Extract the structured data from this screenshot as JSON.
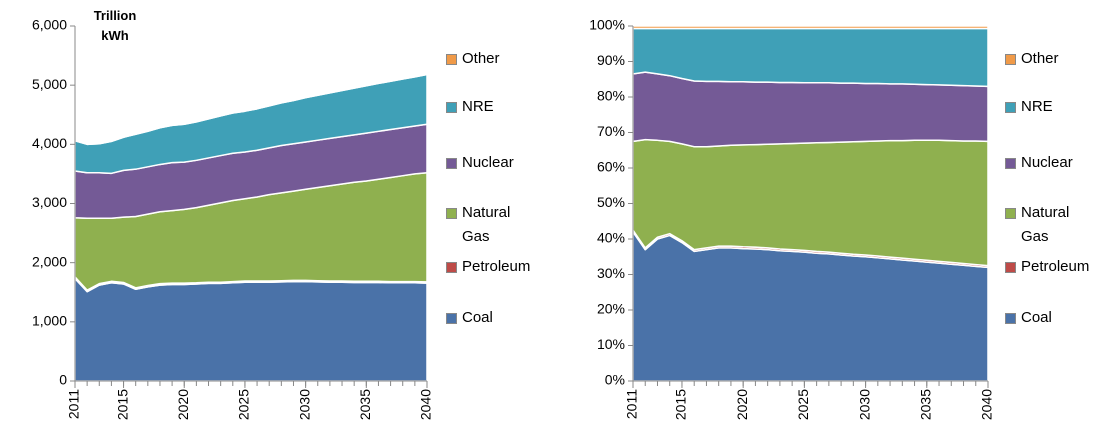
{
  "chart_data": [
    {
      "type": "area",
      "y_label": "Trillion kWh",
      "x": [
        2011,
        2012,
        2013,
        2014,
        2015,
        2016,
        2017,
        2018,
        2019,
        2020,
        2021,
        2022,
        2023,
        2024,
        2025,
        2026,
        2027,
        2028,
        2029,
        2030,
        2031,
        2032,
        2033,
        2034,
        2035,
        2036,
        2037,
        2038,
        2039,
        2040
      ],
      "xlim": [
        2011,
        2040
      ],
      "xticks": [
        2011,
        2015,
        2020,
        2025,
        2030,
        2035,
        2040
      ],
      "ylim": [
        0,
        6000
      ],
      "yticks": [
        0,
        {
          "value": 1000,
          "label": "1,000"
        },
        {
          "value": 2000,
          "label": "2,000"
        },
        {
          "value": 3000,
          "label": "3,000"
        },
        {
          "value": 4000,
          "label": "4,000"
        },
        {
          "value": 5000,
          "label": "5,000"
        },
        {
          "value": 6000,
          "label": "6,000"
        }
      ],
      "series": [
        {
          "name": "Coal",
          "color": "#4a72a8",
          "values": [
            1730,
            1510,
            1620,
            1660,
            1640,
            1550,
            1590,
            1620,
            1630,
            1630,
            1640,
            1650,
            1650,
            1660,
            1670,
            1670,
            1670,
            1675,
            1680,
            1680,
            1675,
            1670,
            1670,
            1665,
            1665,
            1665,
            1660,
            1660,
            1660,
            1655
          ]
        },
        {
          "name": "Petroleum",
          "color": "#be4b48",
          "values": [
            30,
            25,
            25,
            25,
            25,
            25,
            25,
            25,
            25,
            25,
            20,
            20,
            20,
            20,
            20,
            20,
            20,
            20,
            20,
            20,
            20,
            20,
            20,
            20,
            20,
            20,
            20,
            20,
            20,
            20
          ]
        },
        {
          "name": "Natural Gas",
          "color": "#8fb04f",
          "values": [
            1000,
            1215,
            1105,
            1065,
            1105,
            1205,
            1205,
            1215,
            1225,
            1245,
            1270,
            1300,
            1340,
            1370,
            1390,
            1420,
            1460,
            1485,
            1510,
            1540,
            1575,
            1610,
            1640,
            1675,
            1695,
            1725,
            1760,
            1790,
            1820,
            1845
          ]
        },
        {
          "name": "Nuclear",
          "color": "#745a96",
          "values": [
            790,
            770,
            770,
            760,
            790,
            800,
            800,
            800,
            810,
            800,
            800,
            800,
            800,
            800,
            790,
            790,
            790,
            800,
            800,
            800,
            800,
            800,
            800,
            800,
            810,
            810,
            810,
            810,
            810,
            820
          ]
        },
        {
          "name": "NRE",
          "color": "#3fa0b7",
          "values": [
            510,
            480,
            490,
            540,
            560,
            590,
            600,
            620,
            630,
            640,
            650,
            660,
            670,
            680,
            690,
            700,
            710,
            720,
            730,
            750,
            760,
            770,
            780,
            790,
            800,
            810,
            815,
            825,
            830,
            840
          ]
        },
        {
          "name": "Other",
          "color": "#f09a48",
          "values": [
            10,
            10,
            10,
            10,
            10,
            10,
            10,
            10,
            10,
            10,
            10,
            10,
            10,
            10,
            10,
            10,
            10,
            10,
            10,
            10,
            10,
            10,
            10,
            10,
            10,
            10,
            10,
            10,
            10,
            10
          ]
        }
      ]
    },
    {
      "type": "area",
      "x": [
        2011,
        2012,
        2013,
        2014,
        2015,
        2016,
        2017,
        2018,
        2019,
        2020,
        2021,
        2022,
        2023,
        2024,
        2025,
        2026,
        2027,
        2028,
        2029,
        2030,
        2031,
        2032,
        2033,
        2034,
        2035,
        2036,
        2037,
        2038,
        2039,
        2040
      ],
      "xlim": [
        2011,
        2040
      ],
      "xticks": [
        2011,
        2015,
        2020,
        2025,
        2030,
        2035,
        2040
      ],
      "ylim": [
        0,
        100
      ],
      "yticks": [
        {
          "value": 0,
          "label": "0%"
        },
        {
          "value": 10,
          "label": "10%"
        },
        {
          "value": 20,
          "label": "20%"
        },
        {
          "value": 30,
          "label": "30%"
        },
        {
          "value": 40,
          "label": "40%"
        },
        {
          "value": 50,
          "label": "50%"
        },
        {
          "value": 60,
          "label": "60%"
        },
        {
          "value": 70,
          "label": "70%"
        },
        {
          "value": 80,
          "label": "80%"
        },
        {
          "value": 90,
          "label": "90%"
        },
        {
          "value": 100,
          "label": "100%"
        }
      ],
      "series": [
        {
          "name": "Coal",
          "color": "#4a72a8",
          "values": [
            42,
            37,
            40,
            41,
            39,
            36.5,
            37,
            37.5,
            37.5,
            37.3,
            37.2,
            37,
            36.7,
            36.5,
            36.3,
            36,
            35.8,
            35.5,
            35.2,
            35,
            34.7,
            34.4,
            34.1,
            33.8,
            33.5,
            33.2,
            32.9,
            32.6,
            32.3,
            32
          ]
        },
        {
          "name": "Petroleum",
          "color": "#be4b48",
          "values": [
            0.5,
            0.5,
            0.5,
            0.5,
            0.5,
            0.5,
            0.5,
            0.5,
            0.5,
            0.5,
            0.5,
            0.5,
            0.5,
            0.5,
            0.5,
            0.5,
            0.5,
            0.5,
            0.5,
            0.5,
            0.5,
            0.5,
            0.5,
            0.5,
            0.5,
            0.5,
            0.5,
            0.5,
            0.5,
            0.5
          ]
        },
        {
          "name": "Natural Gas",
          "color": "#8fb04f",
          "values": [
            25,
            30.5,
            27.3,
            26,
            27.3,
            29,
            28.5,
            28.2,
            28.4,
            28.7,
            28.9,
            29.2,
            29.6,
            29.9,
            30.2,
            30.6,
            30.9,
            31.3,
            31.7,
            32,
            32.4,
            32.8,
            33.1,
            33.5,
            33.8,
            34.1,
            34.3,
            34.5,
            34.8,
            35
          ]
        },
        {
          "name": "Nuclear",
          "color": "#745a96",
          "values": [
            19,
            19,
            18.7,
            18.5,
            18.4,
            18.5,
            18.4,
            18.2,
            17.9,
            17.8,
            17.6,
            17.5,
            17.3,
            17.2,
            17,
            16.9,
            16.8,
            16.6,
            16.5,
            16.3,
            16.2,
            16,
            16,
            15.8,
            15.7,
            15.6,
            15.6,
            15.6,
            15.5,
            15.5
          ]
        },
        {
          "name": "NRE",
          "color": "#3fa0b7",
          "values": [
            12.8,
            12.3,
            12.8,
            13.3,
            14.1,
            14.8,
            14.9,
            14.9,
            15,
            15,
            15.1,
            15.1,
            15.2,
            15.2,
            15.3,
            15.3,
            15.3,
            15.4,
            15.4,
            15.5,
            15.5,
            15.6,
            15.6,
            15.7,
            15.8,
            15.9,
            16,
            16.1,
            16.2,
            16.3
          ]
        },
        {
          "name": "Other",
          "color": "#f09a48",
          "values": [
            0.7,
            0.7,
            0.7,
            0.7,
            0.7,
            0.7,
            0.7,
            0.7,
            0.7,
            0.7,
            0.7,
            0.7,
            0.7,
            0.7,
            0.7,
            0.7,
            0.7,
            0.7,
            0.7,
            0.7,
            0.7,
            0.7,
            0.7,
            0.7,
            0.7,
            0.7,
            0.7,
            0.7,
            0.7,
            0.7
          ]
        }
      ]
    }
  ]
}
